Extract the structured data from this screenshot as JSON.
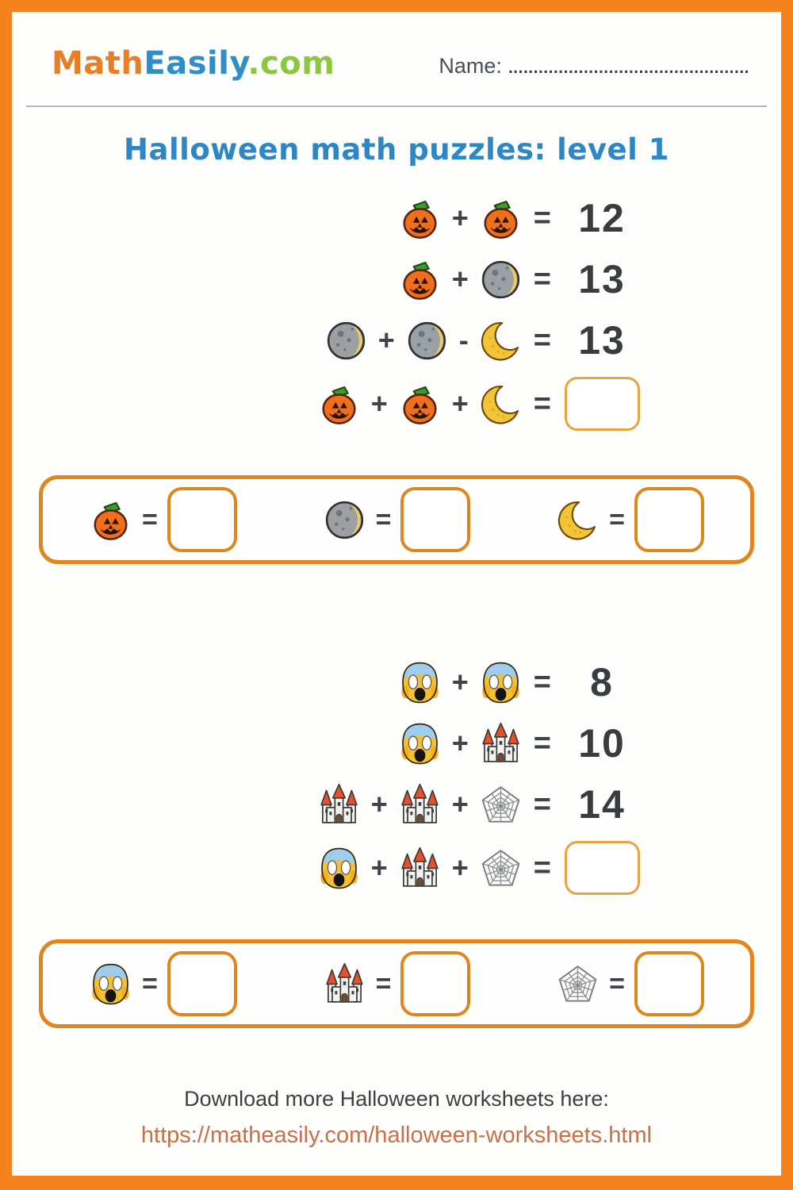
{
  "header": {
    "logo": {
      "math": "Math",
      "easily": "Easily",
      "com": ".com"
    },
    "name_label": "Name:",
    "name_dots": "................................................"
  },
  "title": "Halloween math puzzles: level 1",
  "colors": {
    "frame": "#f5821f",
    "title": "#2d87c5",
    "logo_math": "#e87e26",
    "logo_easily": "#2e8fc7",
    "logo_com": "#8ec640",
    "answer_border": "#e0861c",
    "blank_box_border": "#eaa43e",
    "number_text": "#393d40",
    "link": "#ca7048"
  },
  "icons": {
    "pumpkin": "jack-o-lantern-icon",
    "moon": "waning-crescent-moon-icon",
    "crescent": "crescent-moon-icon",
    "scream": "screaming-face-icon",
    "castle": "castle-icon",
    "web": "spider-web-icon"
  },
  "puzzles": [
    {
      "equations": [
        {
          "tokens": [
            "pumpkin",
            "+",
            "pumpkin",
            "=",
            "12"
          ]
        },
        {
          "tokens": [
            "pumpkin",
            "+",
            "moon",
            "=",
            "13"
          ]
        },
        {
          "tokens": [
            "moon",
            "+",
            "moon",
            "-",
            "crescent",
            "=",
            "13"
          ]
        },
        {
          "tokens": [
            "pumpkin",
            "+",
            "pumpkin",
            "+",
            "crescent",
            "=",
            "?"
          ]
        }
      ],
      "answers": [
        {
          "tokens": [
            "pumpkin",
            "=",
            "?"
          ]
        },
        {
          "tokens": [
            "moon",
            "=",
            "?"
          ]
        },
        {
          "tokens": [
            "crescent",
            "=",
            "?"
          ]
        }
      ]
    },
    {
      "equations": [
        {
          "tokens": [
            "scream",
            "+",
            "scream",
            "=",
            "8"
          ]
        },
        {
          "tokens": [
            "scream",
            "+",
            "castle",
            "=",
            "10"
          ]
        },
        {
          "tokens": [
            "castle",
            "+",
            "castle",
            "+",
            "web",
            "=",
            "14"
          ]
        },
        {
          "tokens": [
            "scream",
            "+",
            "castle",
            "+",
            "web",
            "=",
            "?"
          ]
        }
      ],
      "answers": [
        {
          "tokens": [
            "scream",
            "=",
            "?"
          ]
        },
        {
          "tokens": [
            "castle",
            "=",
            "?"
          ]
        },
        {
          "tokens": [
            "web",
            "=",
            "?"
          ]
        }
      ]
    }
  ],
  "footer": {
    "line1": "Download more Halloween worksheets here:",
    "link": "https://matheasily.com/halloween-worksheets.html"
  }
}
